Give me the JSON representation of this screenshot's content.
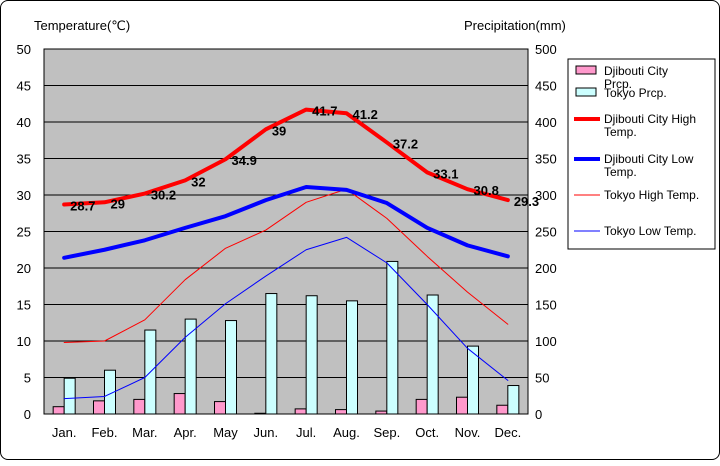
{
  "chart_data": {
    "type": "bar+line",
    "left_axis_title": "Temperature(℃)",
    "right_axis_title": "Precipitation(mm)",
    "months": [
      "Jan.",
      "Feb.",
      "Mar.",
      "Apr.",
      "May",
      "Jun.",
      "Jul.",
      "Aug.",
      "Sep.",
      "Oct.",
      "Nov.",
      "Dec."
    ],
    "temp_ylim": [
      0,
      50
    ],
    "temp_ticks": [
      0,
      5,
      10,
      15,
      20,
      25,
      30,
      35,
      40,
      45,
      50
    ],
    "prcp_ylim": [
      0,
      500
    ],
    "prcp_ticks": [
      0,
      50,
      100,
      150,
      200,
      250,
      300,
      350,
      400,
      450,
      500
    ],
    "bar_series": [
      {
        "key": "djibouti_prcp",
        "name": "Djibouti City Prcp.",
        "color": "#ff99cc",
        "values": [
          10,
          18,
          20,
          28,
          17,
          1,
          7,
          6,
          4,
          20,
          23,
          12
        ]
      },
      {
        "key": "tokyo_prcp",
        "name": "Tokyo Prcp.",
        "color": "#ccffff",
        "values": [
          49,
          60,
          115,
          130,
          128,
          165,
          162,
          155,
          209,
          163,
          93,
          39
        ]
      }
    ],
    "line_series": [
      {
        "key": "djibouti_high",
        "name": "Djibouti City High Temp.",
        "color": "#ff0000",
        "width": 4,
        "values": [
          28.7,
          29,
          30.2,
          32,
          34.9,
          39,
          41.7,
          41.2,
          37.2,
          33.1,
          30.8,
          29.3
        ],
        "labels": [
          "28.7",
          "29",
          "30.2",
          "32",
          "34.9",
          "39",
          "41.7",
          "41.2",
          "37.2",
          "33.1",
          "30.8",
          "29.3"
        ]
      },
      {
        "key": "djibouti_low",
        "name": "Djibouti City Low Temp.",
        "color": "#0000ff",
        "width": 4,
        "values": [
          21.4,
          22.5,
          23.8,
          25.5,
          27.1,
          29.3,
          31.1,
          30.7,
          28.9,
          25.5,
          23.1,
          21.6
        ]
      },
      {
        "key": "tokyo_high",
        "name": "Tokyo High Temp.",
        "color": "#ff0000",
        "width": 1,
        "values": [
          9.8,
          10,
          12.9,
          18.4,
          22.7,
          25.2,
          29,
          30.8,
          26.8,
          21.6,
          16.7,
          12.3
        ]
      },
      {
        "key": "tokyo_low",
        "name": "Tokyo Low Temp.",
        "color": "#0000ff",
        "width": 1,
        "values": [
          2.1,
          2.4,
          5,
          10.5,
          15.1,
          18.9,
          22.5,
          24.2,
          20.7,
          15,
          9,
          4.6
        ]
      }
    ],
    "legend_position": "right",
    "plot_background": "#c0c0c0",
    "grid": true
  }
}
